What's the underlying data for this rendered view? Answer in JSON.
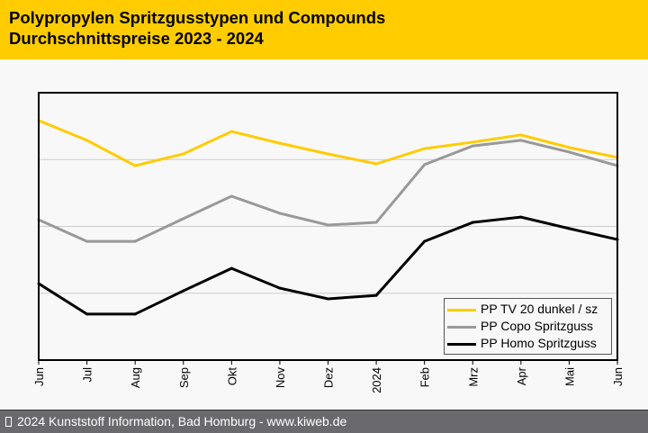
{
  "header": {
    "title_line1": "Polypropylen Spritzgusstypen und Compounds",
    "title_line2": "Durchschnittspreise 2023 - 2024",
    "background_color": "#ffcc00"
  },
  "footer": {
    "copyright_icon": "copyright-symbol-icon",
    "text": "2024 Kunststoff Information, Bad Homburg - www.kiweb.de"
  },
  "chart_data": {
    "type": "line",
    "title": "Polypropylen Spritzgusstypen und Compounds Durchschnittspreise 2023 - 2024",
    "xlabel": "",
    "ylabel": "",
    "y_units": "relative index (no y-axis labels shown; 0 = plot bottom, 100 = plot top)",
    "ylim": [
      0,
      100
    ],
    "grid": {
      "horizontal": true,
      "vertical": false,
      "values": [
        25,
        50,
        75
      ]
    },
    "legend_position": "bottom-right",
    "categories": [
      "Jun",
      "Jul",
      "Aug",
      "Sep",
      "Okt",
      "Nov",
      "Dez",
      "2024",
      "Feb",
      "Mrz",
      "Apr",
      "Mai",
      "Jun"
    ],
    "series": [
      {
        "name": "PP TV 20 dunkel / sz",
        "color": "#ffcc00",
        "values": [
          89.6,
          82.2,
          72.7,
          77.1,
          85.5,
          81.1,
          77.1,
          73.4,
          79.1,
          81.5,
          84.2,
          79.5,
          75.8
        ]
      },
      {
        "name": "PP Copo Spritzguss",
        "color": "#999999",
        "values": [
          52.5,
          44.4,
          44.4,
          52.9,
          61.3,
          54.9,
          50.5,
          51.5,
          73.1,
          80.1,
          82.2,
          77.8,
          72.7
        ]
      },
      {
        "name": "PP Homo Spritzguss",
        "color": "#000000",
        "values": [
          28.6,
          17.2,
          17.2,
          25.9,
          34.3,
          26.9,
          22.9,
          24.2,
          44.4,
          51.5,
          53.5,
          49.2,
          45.1
        ]
      }
    ]
  }
}
